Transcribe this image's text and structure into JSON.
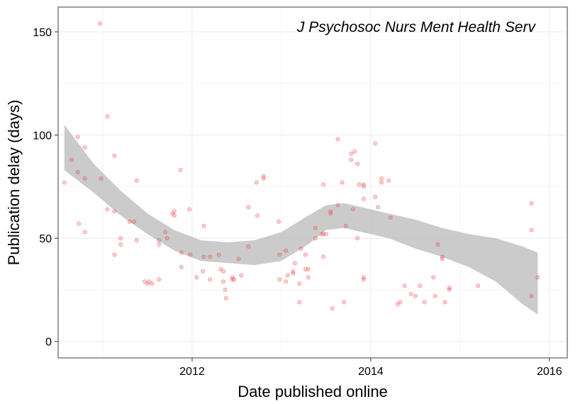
{
  "chart_data": {
    "type": "scatter",
    "title": "J Psychosoc Nurs Ment Health Serv",
    "xlabel": "Date published online",
    "ylabel": "Publication delay (days)",
    "xlim": [
      2010.5,
      2016.2
    ],
    "ylim": [
      -8,
      162
    ],
    "xticks": [
      2012,
      2014,
      2016
    ],
    "xtick_labels": [
      "2012",
      "2014",
      "2016"
    ],
    "yticks": [
      0,
      50,
      100,
      150
    ],
    "ytick_labels": [
      "0",
      "50",
      "100",
      "150"
    ],
    "grid": true,
    "point_color": "#e8383d",
    "band_color": "#bebebe",
    "points": [
      [
        2010.57,
        77
      ],
      [
        2010.65,
        88
      ],
      [
        2010.72,
        99
      ],
      [
        2010.72,
        82
      ],
      [
        2010.73,
        57
      ],
      [
        2010.8,
        94
      ],
      [
        2010.8,
        79
      ],
      [
        2010.8,
        53
      ],
      [
        2010.97,
        154
      ],
      [
        2010.98,
        79
      ],
      [
        2011.05,
        109
      ],
      [
        2011.05,
        64
      ],
      [
        2011.13,
        90
      ],
      [
        2011.13,
        63
      ],
      [
        2011.13,
        42
      ],
      [
        2011.2,
        50
      ],
      [
        2011.2,
        47
      ],
      [
        2011.3,
        58
      ],
      [
        2011.38,
        78
      ],
      [
        2011.38,
        49
      ],
      [
        2011.47,
        29
      ],
      [
        2011.5,
        28
      ],
      [
        2011.52,
        29
      ],
      [
        2011.55,
        28
      ],
      [
        2011.63,
        30
      ],
      [
        2011.63,
        49
      ],
      [
        2011.63,
        47
      ],
      [
        2011.7,
        53
      ],
      [
        2011.72,
        50
      ],
      [
        2011.78,
        62
      ],
      [
        2011.8,
        63
      ],
      [
        2011.8,
        61
      ],
      [
        2011.87,
        83
      ],
      [
        2011.88,
        43
      ],
      [
        2011.88,
        36
      ],
      [
        2011.97,
        64
      ],
      [
        2011.98,
        42
      ],
      [
        2012.05,
        31
      ],
      [
        2012.12,
        34
      ],
      [
        2012.13,
        41
      ],
      [
        2012.13,
        56
      ],
      [
        2012.2,
        30
      ],
      [
        2012.2,
        41
      ],
      [
        2012.3,
        42
      ],
      [
        2012.32,
        35
      ],
      [
        2012.35,
        29
      ],
      [
        2012.35,
        34
      ],
      [
        2012.37,
        25
      ],
      [
        2012.38,
        21
      ],
      [
        2012.45,
        31
      ],
      [
        2012.45,
        30
      ],
      [
        2012.52,
        40
      ],
      [
        2012.55,
        32
      ],
      [
        2012.63,
        65
      ],
      [
        2012.63,
        46
      ],
      [
        2012.72,
        77
      ],
      [
        2012.73,
        61
      ],
      [
        2012.8,
        80
      ],
      [
        2012.8,
        79
      ],
      [
        2012.97,
        58
      ],
      [
        2012.98,
        42
      ],
      [
        2012.98,
        30
      ],
      [
        2013.05,
        44
      ],
      [
        2013.05,
        29
      ],
      [
        2013.07,
        32
      ],
      [
        2013.13,
        33
      ],
      [
        2013.13,
        34
      ],
      [
        2013.15,
        38
      ],
      [
        2013.2,
        28
      ],
      [
        2013.2,
        19
      ],
      [
        2013.22,
        45
      ],
      [
        2013.27,
        35
      ],
      [
        2013.27,
        42
      ],
      [
        2013.3,
        35
      ],
      [
        2013.3,
        31
      ],
      [
        2013.38,
        50
      ],
      [
        2013.38,
        55
      ],
      [
        2013.45,
        52
      ],
      [
        2013.47,
        76
      ],
      [
        2013.47,
        41
      ],
      [
        2013.47,
        52
      ],
      [
        2013.5,
        52
      ],
      [
        2013.55,
        63
      ],
      [
        2013.57,
        16
      ],
      [
        2013.63,
        98
      ],
      [
        2013.63,
        66
      ],
      [
        2013.68,
        77
      ],
      [
        2013.7,
        19
      ],
      [
        2013.72,
        56
      ],
      [
        2013.78,
        88
      ],
      [
        2013.78,
        91
      ],
      [
        2013.8,
        64
      ],
      [
        2013.82,
        92
      ],
      [
        2013.85,
        86
      ],
      [
        2013.85,
        50
      ],
      [
        2013.87,
        76
      ],
      [
        2013.92,
        69
      ],
      [
        2013.92,
        75
      ],
      [
        2013.92,
        76
      ],
      [
        2013.92,
        31
      ],
      [
        2013.92,
        30
      ],
      [
        2014.05,
        96
      ],
      [
        2014.05,
        70
      ],
      [
        2014.08,
        65
      ],
      [
        2014.12,
        79
      ],
      [
        2014.12,
        77
      ],
      [
        2014.2,
        78
      ],
      [
        2014.22,
        60
      ],
      [
        2014.3,
        18
      ],
      [
        2014.33,
        19
      ],
      [
        2014.38,
        27
      ],
      [
        2014.45,
        23
      ],
      [
        2014.5,
        22
      ],
      [
        2014.55,
        27
      ],
      [
        2014.6,
        19
      ],
      [
        2014.7,
        31
      ],
      [
        2014.72,
        22
      ],
      [
        2014.75,
        47
      ],
      [
        2014.8,
        41
      ],
      [
        2014.8,
        40
      ],
      [
        2014.83,
        19
      ],
      [
        2014.88,
        26
      ],
      [
        2014.88,
        25
      ],
      [
        2015.2,
        27
      ],
      [
        2015.8,
        67
      ],
      [
        2015.8,
        54
      ],
      [
        2015.8,
        22
      ],
      [
        2015.87,
        31
      ],
      [
        2011.35,
        58
      ],
      [
        2012.47,
        30
      ],
      [
        2013.55,
        62
      ]
    ],
    "smooth": {
      "x": [
        2010.57,
        2010.9,
        2011.2,
        2011.5,
        2011.8,
        2012.1,
        2012.4,
        2012.7,
        2013.0,
        2013.3,
        2013.5,
        2013.7,
        2013.9,
        2014.2,
        2014.5,
        2014.8,
        2015.1,
        2015.4,
        2015.7,
        2015.87
      ],
      "fit": [
        94,
        79,
        67,
        57,
        49,
        44,
        43,
        43,
        46,
        54,
        60,
        61,
        59,
        56,
        52,
        48,
        44,
        40,
        34,
        28
      ],
      "lower": [
        83,
        72,
        61,
        52,
        44,
        39,
        38,
        37,
        39,
        47,
        54,
        55,
        53,
        50,
        45,
        41,
        36,
        29,
        18,
        13
      ],
      "upper": [
        105,
        86,
        73,
        62,
        54,
        49,
        48,
        49,
        53,
        61,
        66,
        67,
        65,
        62,
        59,
        55,
        52,
        50,
        46,
        43
      ]
    }
  }
}
